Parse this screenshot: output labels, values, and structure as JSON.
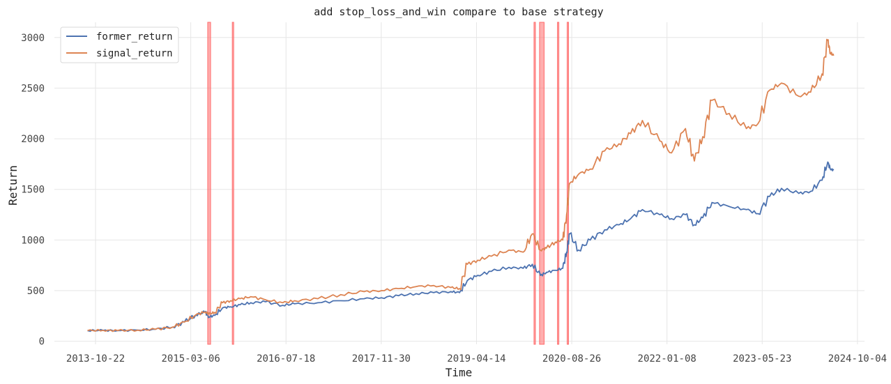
{
  "chart_data": {
    "type": "line",
    "title": "add stop_loss_and_win compare to base strategy",
    "xlabel": "Time",
    "ylabel": "Return",
    "xlim": [
      "2013-03-20",
      "2024-11-10"
    ],
    "ylim": [
      -30,
      3150
    ],
    "xticks": [
      "2013-10-22",
      "2015-03-06",
      "2016-07-18",
      "2017-11-30",
      "2019-04-14",
      "2020-08-26",
      "2022-01-08",
      "2023-05-23",
      "2024-10-04"
    ],
    "yticks": [
      0,
      500,
      1000,
      1500,
      2000,
      2500,
      3000
    ],
    "grid": true,
    "legend_position": "top-left",
    "colors": {
      "former_return": "#4c72b0",
      "signal_return": "#dd8452",
      "highlight": "#ff6b6b"
    },
    "series": [
      {
        "name": "former_return",
        "x": [
          "2013-09-10",
          "2013-12-01",
          "2014-02-15",
          "2014-06-01",
          "2014-09-01",
          "2014-12-01",
          "2015-02-01",
          "2015-04-01",
          "2015-05-20",
          "2015-06-10",
          "2015-07-10",
          "2015-08-20",
          "2015-10-01",
          "2015-11-20",
          "2016-01-15",
          "2016-04-01",
          "2016-07-01",
          "2016-09-01",
          "2017-01-01",
          "2017-05-01",
          "2017-09-01",
          "2017-12-01",
          "2018-03-01",
          "2018-06-01",
          "2018-09-01",
          "2018-12-01",
          "2019-01-15",
          "2019-02-25",
          "2019-04-20",
          "2019-07-01",
          "2019-10-01",
          "2019-12-15",
          "2020-02-01",
          "2020-03-15",
          "2020-04-15",
          "2020-06-01",
          "2020-07-10",
          "2020-07-30",
          "2020-08-15",
          "2020-10-01",
          "2020-12-01",
          "2021-02-15",
          "2021-05-01",
          "2021-07-01",
          "2021-09-01",
          "2021-12-01",
          "2022-02-01",
          "2022-04-15",
          "2022-06-01",
          "2022-07-15",
          "2022-09-01",
          "2022-12-01",
          "2023-03-01",
          "2023-05-01",
          "2023-07-01",
          "2023-09-01",
          "2023-12-01",
          "2024-02-01",
          "2024-04-01",
          "2024-05-01",
          "2024-05-15",
          "2024-06-01"
        ],
        "values": [
          105,
          108,
          105,
          110,
          118,
          140,
          190,
          260,
          290,
          240,
          255,
          330,
          340,
          360,
          380,
          390,
          355,
          370,
          380,
          400,
          420,
          430,
          450,
          470,
          480,
          490,
          480,
          600,
          650,
          690,
          730,
          720,
          760,
          650,
          680,
          700,
          720,
          880,
          1060,
          900,
          1000,
          1100,
          1150,
          1210,
          1300,
          1250,
          1210,
          1250,
          1150,
          1220,
          1370,
          1330,
          1300,
          1260,
          1430,
          1510,
          1460,
          1480,
          1590,
          1770,
          1700,
          1690
        ]
      },
      {
        "name": "signal_return",
        "x": [
          "2013-09-10",
          "2013-12-01",
          "2014-02-15",
          "2014-06-01",
          "2014-09-01",
          "2014-12-01",
          "2015-02-01",
          "2015-04-01",
          "2015-05-20",
          "2015-06-10",
          "2015-07-10",
          "2015-08-20",
          "2015-10-01",
          "2015-11-20",
          "2016-01-15",
          "2016-04-01",
          "2016-07-01",
          "2016-09-01",
          "2017-01-01",
          "2017-05-01",
          "2017-09-01",
          "2017-12-01",
          "2018-03-01",
          "2018-06-01",
          "2018-09-01",
          "2018-12-01",
          "2019-01-15",
          "2019-02-25",
          "2019-04-20",
          "2019-07-01",
          "2019-10-01",
          "2019-12-15",
          "2020-02-01",
          "2020-03-15",
          "2020-04-15",
          "2020-06-01",
          "2020-07-10",
          "2020-07-30",
          "2020-08-15",
          "2020-10-01",
          "2020-12-01",
          "2021-02-15",
          "2021-05-01",
          "2021-07-01",
          "2021-09-01",
          "2021-12-01",
          "2022-02-01",
          "2022-04-15",
          "2022-06-01",
          "2022-07-15",
          "2022-09-01",
          "2022-12-01",
          "2023-03-01",
          "2023-05-01",
          "2023-07-01",
          "2023-09-01",
          "2023-12-01",
          "2024-02-01",
          "2024-04-01",
          "2024-05-01",
          "2024-05-15",
          "2024-06-01"
        ],
        "values": [
          105,
          108,
          105,
          110,
          118,
          140,
          190,
          260,
          290,
          270,
          285,
          380,
          400,
          420,
          440,
          410,
          380,
          400,
          420,
          460,
          490,
          500,
          520,
          540,
          550,
          530,
          520,
          760,
          800,
          840,
          900,
          880,
          1060,
          900,
          920,
          980,
          1000,
          1250,
          1560,
          1650,
          1700,
          1880,
          1950,
          2050,
          2180,
          1980,
          1860,
          2100,
          1780,
          2020,
          2380,
          2250,
          2100,
          2150,
          2480,
          2550,
          2420,
          2460,
          2640,
          2970,
          2850,
          2820
        ]
      }
    ],
    "highlight_spans": [
      {
        "start": "2015-06-03",
        "end": "2015-06-18"
      },
      {
        "start": "2015-10-10",
        "end": "2015-10-15"
      },
      {
        "start": "2020-02-10",
        "end": "2020-02-15"
      },
      {
        "start": "2020-03-10",
        "end": "2020-04-03"
      },
      {
        "start": "2020-06-12",
        "end": "2020-06-18"
      },
      {
        "start": "2020-08-02",
        "end": "2020-08-07"
      }
    ]
  }
}
